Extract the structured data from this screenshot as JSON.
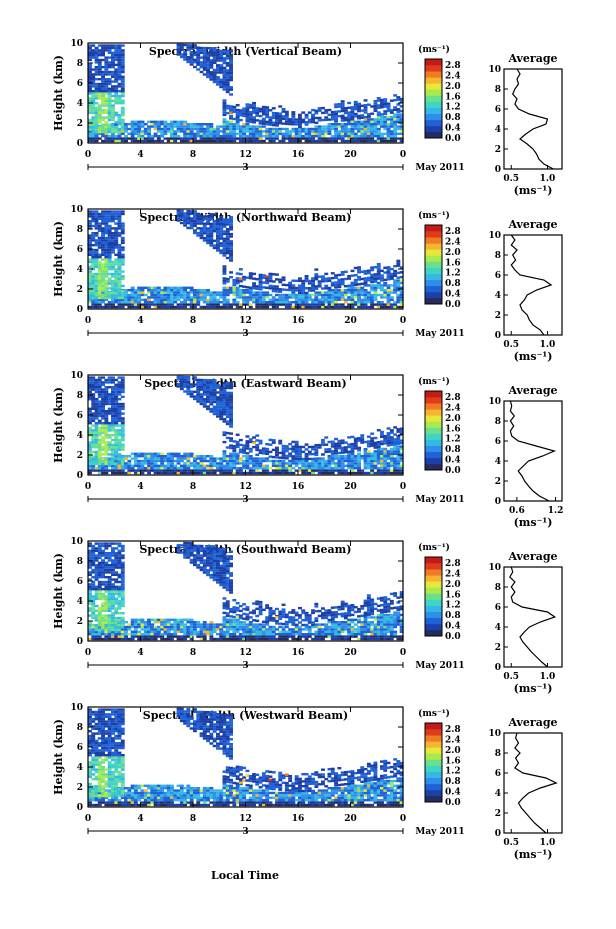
{
  "colorbar": {
    "unit": "(ms⁻¹)",
    "tick_labels": [
      "0.0",
      "0.4",
      "0.8",
      "1.2",
      "1.6",
      "2.0",
      "2.4",
      "2.8"
    ],
    "colors": [
      "#232b60",
      "#1c3fa8",
      "#1f62d8",
      "#2e8ee8",
      "#36b8e6",
      "#3fd4c3",
      "#6be08c",
      "#a9ea4f",
      "#e6e83a",
      "#f6b52f",
      "#f07a25",
      "#e03b1c",
      "#c41a18"
    ]
  },
  "shared_axes": {
    "x_tick_labels": [
      "0",
      "4",
      "8",
      "12",
      "16",
      "20",
      "0"
    ],
    "day_label": "3",
    "month_label": "May 2011",
    "x_axis_label": "Local Time",
    "y_label": "Height (km)",
    "y_tick_labels": [
      "0",
      "2",
      "4",
      "6",
      "8",
      "10"
    ],
    "avg_title": "Average",
    "avg_xlabel": "(ms⁻¹)"
  },
  "chart_data": [
    {
      "type": "heatmap",
      "title": "Spectral Width (Vertical Beam)",
      "xlim": [
        0,
        24
      ],
      "ylim": [
        0,
        10
      ],
      "profile": {
        "type": "line",
        "title": "Average",
        "xlim": [
          0.4,
          1.2
        ],
        "xtick_labels": [
          "0.5",
          "1.0"
        ],
        "height_km": [
          0,
          0.5,
          1,
          1.5,
          2,
          2.5,
          3,
          3.5,
          4,
          4.5,
          5,
          5.5,
          6,
          6.5,
          7,
          7.5,
          8,
          8.5,
          9,
          9.5,
          10
        ],
        "value_ms": [
          1.08,
          0.95,
          0.88,
          0.85,
          0.8,
          0.72,
          0.62,
          0.7,
          0.8,
          0.98,
          1.0,
          0.75,
          0.6,
          0.55,
          0.58,
          0.52,
          0.55,
          0.6,
          0.58,
          0.62,
          0.58
        ]
      }
    },
    {
      "type": "heatmap",
      "title": "Spectral Width (Northward Beam)",
      "xlim": [
        0,
        24
      ],
      "ylim": [
        0,
        10
      ],
      "profile": {
        "type": "line",
        "title": "Average",
        "xlim": [
          0.4,
          1.2
        ],
        "xtick_labels": [
          "0.5",
          "1.0"
        ],
        "height_km": [
          0,
          0.5,
          1,
          1.5,
          2,
          2.5,
          3,
          3.5,
          4,
          4.5,
          5,
          5.5,
          6,
          6.5,
          7,
          7.5,
          8,
          8.5,
          9,
          9.5,
          10
        ],
        "value_ms": [
          0.95,
          0.9,
          0.8,
          0.75,
          0.72,
          0.65,
          0.62,
          0.68,
          0.72,
          0.85,
          1.05,
          0.95,
          0.62,
          0.55,
          0.5,
          0.56,
          0.52,
          0.58,
          0.5,
          0.55,
          0.5
        ]
      }
    },
    {
      "type": "heatmap",
      "title": "Spectral Width (Eastward Beam)",
      "xlim": [
        0,
        24
      ],
      "ylim": [
        0,
        10
      ],
      "profile": {
        "type": "line",
        "title": "Average",
        "xlim": [
          0.4,
          1.3
        ],
        "xtick_labels": [
          "0.6",
          "1.2"
        ],
        "height_km": [
          0,
          0.5,
          1,
          1.5,
          2,
          2.5,
          3,
          3.5,
          4,
          4.5,
          5,
          5.5,
          6,
          6.5,
          7,
          7.5,
          8,
          8.5,
          9,
          9.5,
          10
        ],
        "value_ms": [
          1.1,
          0.95,
          0.85,
          0.78,
          0.72,
          0.68,
          0.62,
          0.7,
          0.78,
          1.0,
          1.18,
          0.9,
          0.62,
          0.52,
          0.5,
          0.55,
          0.5,
          0.56,
          0.5,
          0.52,
          0.5
        ]
      }
    },
    {
      "type": "heatmap",
      "title": "Spectral Width (Southward Beam)",
      "xlim": [
        0,
        24
      ],
      "ylim": [
        0,
        10
      ],
      "profile": {
        "type": "line",
        "title": "Average",
        "xlim": [
          0.4,
          1.2
        ],
        "xtick_labels": [
          "0.5",
          "1.0"
        ],
        "height_km": [
          0,
          0.5,
          1,
          1.5,
          2,
          2.5,
          3,
          3.5,
          4,
          4.5,
          5,
          5.5,
          6,
          6.5,
          7,
          7.5,
          8,
          8.5,
          9,
          9.5,
          10
        ],
        "value_ms": [
          1.0,
          0.92,
          0.85,
          0.78,
          0.72,
          0.66,
          0.62,
          0.68,
          0.75,
          0.9,
          1.1,
          1.0,
          0.65,
          0.52,
          0.5,
          0.55,
          0.5,
          0.55,
          0.48,
          0.52,
          0.5
        ]
      }
    },
    {
      "type": "heatmap",
      "title": "Spectral Width (Westward Beam)",
      "xlim": [
        0,
        24
      ],
      "ylim": [
        0,
        10
      ],
      "profile": {
        "type": "line",
        "title": "Average",
        "xlim": [
          0.4,
          1.2
        ],
        "xtick_labels": [
          "0.5",
          "1.0"
        ],
        "height_km": [
          0,
          0.5,
          1,
          1.5,
          2,
          2.5,
          3,
          3.5,
          4,
          4.5,
          5,
          5.5,
          6,
          6.5,
          7,
          7.5,
          8,
          8.5,
          9,
          9.5,
          10
        ],
        "value_ms": [
          0.98,
          0.9,
          0.82,
          0.76,
          0.7,
          0.64,
          0.6,
          0.66,
          0.74,
          0.9,
          1.12,
          0.98,
          0.66,
          0.55,
          0.6,
          0.56,
          0.62,
          0.55,
          0.6,
          0.56,
          0.58
        ]
      }
    }
  ]
}
